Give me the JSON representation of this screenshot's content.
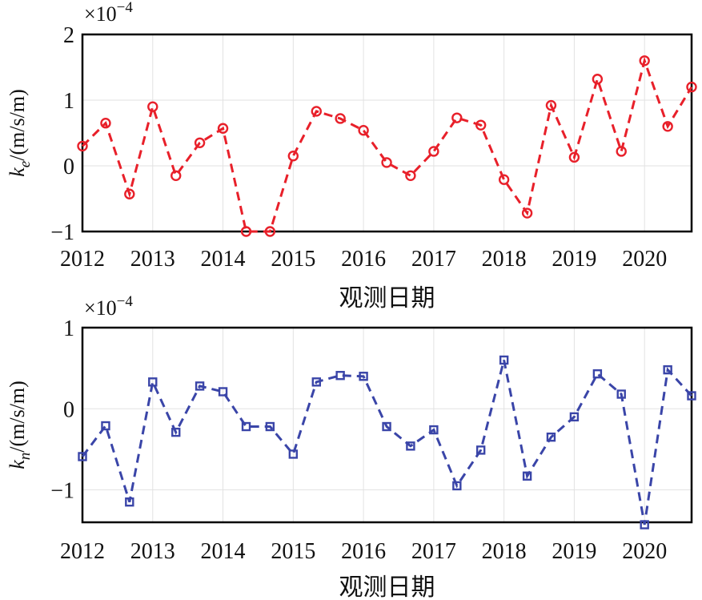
{
  "chart_data": [
    {
      "type": "line",
      "xlabel": "观测日期",
      "ylabel": {
        "symbol": "k",
        "sub": "e",
        "unit": "/(m/s/m)"
      },
      "exponent_label": "×10",
      "exponent": "−4",
      "x_ticks": [
        "2012",
        "2013",
        "2014",
        "2015",
        "2016",
        "2017",
        "2018",
        "2019",
        "2020"
      ],
      "xlim": [
        2012,
        2020.67
      ],
      "ylim": [
        -1,
        2
      ],
      "y_ticks": [
        {
          "v": -1,
          "label": "−1"
        },
        {
          "v": 0,
          "label": "0"
        },
        {
          "v": 1,
          "label": "1"
        },
        {
          "v": 2,
          "label": "2"
        }
      ],
      "grid": true,
      "series": [
        {
          "color": "#e8202a",
          "marker": "circle",
          "line": "dashed",
          "x": [
            2012.0,
            2012.33,
            2012.67,
            2013.0,
            2013.33,
            2013.67,
            2014.0,
            2014.33,
            2014.67,
            2015.0,
            2015.33,
            2015.67,
            2016.0,
            2016.33,
            2016.67,
            2017.0,
            2017.33,
            2017.67,
            2018.0,
            2018.33,
            2018.67,
            2019.0,
            2019.33,
            2019.67,
            2020.0,
            2020.33,
            2020.67
          ],
          "values": [
            0.3,
            0.65,
            -0.43,
            0.9,
            -0.15,
            0.35,
            0.57,
            -1.0,
            -1.0,
            0.15,
            0.83,
            0.72,
            0.54,
            0.05,
            -0.15,
            0.22,
            0.73,
            0.62,
            -0.21,
            -0.72,
            0.92,
            0.13,
            1.32,
            0.22,
            1.6,
            0.6,
            1.2
          ]
        }
      ]
    },
    {
      "type": "line",
      "xlabel": "观测日期",
      "ylabel": {
        "symbol": "k",
        "sub": "n",
        "unit": "/(m/s/m)"
      },
      "exponent_label": "×10",
      "exponent": "−4",
      "x_ticks": [
        "2012",
        "2013",
        "2014",
        "2015",
        "2016",
        "2017",
        "2018",
        "2019",
        "2020"
      ],
      "xlim": [
        2012,
        2020.67
      ],
      "ylim": [
        -1.4,
        1
      ],
      "y_ticks": [
        {
          "v": -1,
          "label": "−1"
        },
        {
          "v": 0,
          "label": "0"
        },
        {
          "v": 1,
          "label": "1"
        }
      ],
      "grid": true,
      "series": [
        {
          "color": "#3a45a8",
          "marker": "square",
          "line": "dashed",
          "x": [
            2012.0,
            2012.33,
            2012.67,
            2013.0,
            2013.33,
            2013.67,
            2014.0,
            2014.33,
            2014.67,
            2015.0,
            2015.33,
            2015.67,
            2016.0,
            2016.33,
            2016.67,
            2017.0,
            2017.33,
            2017.67,
            2018.0,
            2018.33,
            2018.67,
            2019.0,
            2019.33,
            2019.67,
            2020.0,
            2020.33,
            2020.67
          ],
          "values": [
            -0.59,
            -0.21,
            -1.15,
            0.33,
            -0.29,
            0.28,
            0.21,
            -0.22,
            -0.22,
            -0.56,
            0.33,
            0.41,
            0.4,
            -0.22,
            -0.46,
            -0.26,
            -0.95,
            -0.51,
            0.6,
            -0.83,
            -0.35,
            -0.1,
            0.43,
            0.18,
            -1.43,
            0.48,
            0.16
          ]
        }
      ]
    }
  ]
}
